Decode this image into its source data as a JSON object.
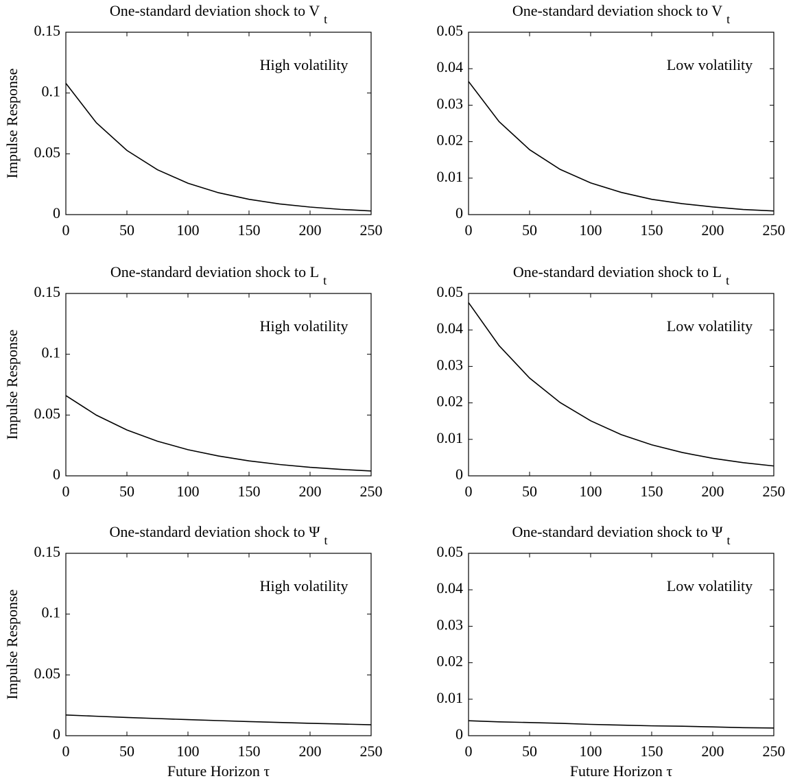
{
  "chart_data": [
    {
      "type": "line",
      "title": "One-standard deviation shock to V",
      "title_sub": "t",
      "annotation": "High volatility",
      "ylabel": "Impulse Response",
      "x": [
        0,
        25,
        50,
        75,
        100,
        125,
        150,
        175,
        200,
        225,
        250
      ],
      "series": [
        {
          "color": "#000000",
          "values": [
            0.108,
            0.0755,
            0.0528,
            0.0369,
            0.0258,
            0.018,
            0.0126,
            0.0088,
            0.0062,
            0.0043,
            0.003
          ]
        }
      ],
      "xlim": [
        0,
        250
      ],
      "xticks": [
        0,
        50,
        100,
        150,
        200,
        250
      ],
      "ylim": [
        0,
        0.15
      ],
      "yticks": [
        0,
        0.05,
        0.1,
        0.15
      ]
    },
    {
      "type": "line",
      "title": "One-standard deviation shock to V",
      "title_sub": "t",
      "annotation": "Low volatility",
      "x": [
        0,
        25,
        50,
        75,
        100,
        125,
        150,
        175,
        200,
        225,
        250
      ],
      "series": [
        {
          "color": "#000000",
          "values": [
            0.0365,
            0.0255,
            0.0178,
            0.0124,
            0.0087,
            0.0061,
            0.0042,
            0.003,
            0.0021,
            0.0014,
            0.001
          ]
        }
      ],
      "xlim": [
        0,
        250
      ],
      "xticks": [
        0,
        50,
        100,
        150,
        200,
        250
      ],
      "ylim": [
        0,
        0.05
      ],
      "yticks": [
        0,
        0.01,
        0.02,
        0.03,
        0.04,
        0.05
      ]
    },
    {
      "type": "line",
      "title": "One-standard deviation shock to L",
      "title_sub": "t",
      "annotation": "High volatility",
      "ylabel": "Impulse Response",
      "x": [
        0,
        25,
        50,
        75,
        100,
        125,
        150,
        175,
        200,
        225,
        250
      ],
      "series": [
        {
          "color": "#000000",
          "values": [
            0.066,
            0.0499,
            0.0377,
            0.0285,
            0.0215,
            0.0163,
            0.0123,
            0.0093,
            0.007,
            0.0053,
            0.004
          ]
        }
      ],
      "xlim": [
        0,
        250
      ],
      "xticks": [
        0,
        50,
        100,
        150,
        200,
        250
      ],
      "ylim": [
        0,
        0.15
      ],
      "yticks": [
        0,
        0.05,
        0.1,
        0.15
      ]
    },
    {
      "type": "line",
      "title": "One-standard deviation shock to L",
      "title_sub": "t",
      "annotation": "Low volatility",
      "x": [
        0,
        25,
        50,
        75,
        100,
        125,
        150,
        175,
        200,
        225,
        250
      ],
      "series": [
        {
          "color": "#000000",
          "values": [
            0.0475,
            0.0357,
            0.0268,
            0.0201,
            0.0151,
            0.0113,
            0.0085,
            0.0064,
            0.0048,
            0.0036,
            0.0027
          ]
        }
      ],
      "xlim": [
        0,
        250
      ],
      "xticks": [
        0,
        50,
        100,
        150,
        200,
        250
      ],
      "ylim": [
        0,
        0.05
      ],
      "yticks": [
        0,
        0.01,
        0.02,
        0.03,
        0.04,
        0.05
      ]
    },
    {
      "type": "line",
      "title": "One-standard deviation shock to Ψ",
      "title_sub": "t",
      "annotation": "High volatility",
      "ylabel": "Impulse Response",
      "xlabel": "Future Horizon τ",
      "x": [
        0,
        25,
        50,
        75,
        100,
        125,
        150,
        175,
        200,
        225,
        250
      ],
      "series": [
        {
          "color": "#000000",
          "values": [
            0.017,
            0.016,
            0.015,
            0.0141,
            0.0132,
            0.0124,
            0.0116,
            0.0109,
            0.0102,
            0.0096,
            0.009
          ]
        }
      ],
      "xlim": [
        0,
        250
      ],
      "xticks": [
        0,
        50,
        100,
        150,
        200,
        250
      ],
      "ylim": [
        0,
        0.15
      ],
      "yticks": [
        0,
        0.05,
        0.1,
        0.15
      ]
    },
    {
      "type": "line",
      "title": "One-standard deviation shock to Ψ",
      "title_sub": "t",
      "annotation": "Low volatility",
      "xlabel": "Future Horizon τ",
      "x": [
        0,
        25,
        50,
        75,
        100,
        125,
        150,
        175,
        200,
        225,
        250
      ],
      "series": [
        {
          "color": "#000000",
          "values": [
            0.0041,
            0.0038,
            0.0036,
            0.0034,
            0.0031,
            0.0029,
            0.0027,
            0.0026,
            0.0024,
            0.0022,
            0.0021
          ]
        }
      ],
      "xlim": [
        0,
        250
      ],
      "xticks": [
        0,
        50,
        100,
        150,
        200,
        250
      ],
      "ylim": [
        0,
        0.05
      ],
      "yticks": [
        0,
        0.01,
        0.02,
        0.03,
        0.04,
        0.05
      ]
    }
  ]
}
